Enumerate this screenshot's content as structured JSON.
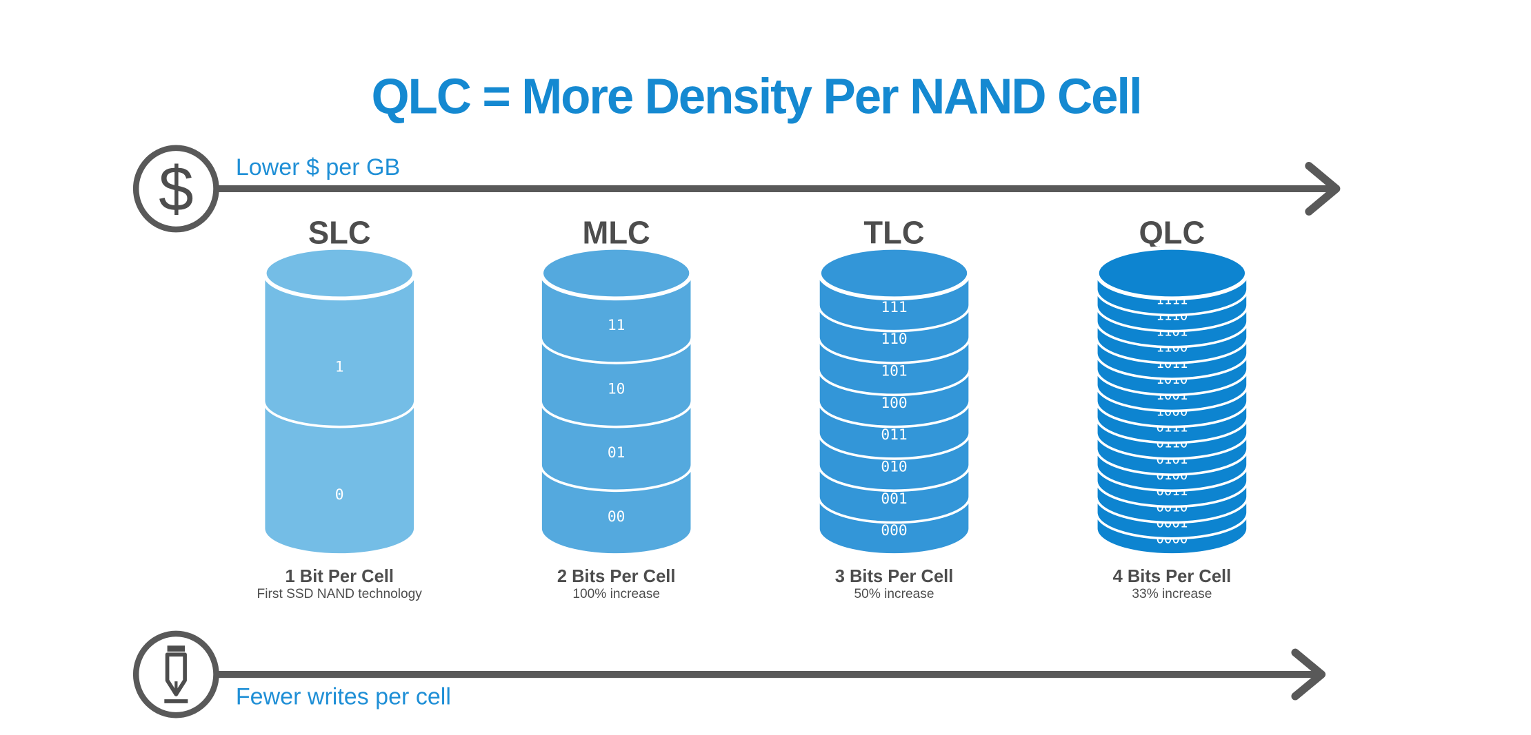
{
  "title": "QLC = More Density Per NAND Cell",
  "top_arrow": {
    "label": "Lower $ per GB",
    "icon": "dollar-icon"
  },
  "bottom_arrow": {
    "label": "Fewer writes per cell",
    "icon": "pencil-icon"
  },
  "colors": {
    "title": "#1589d1",
    "arrow": "#595959",
    "arrow_label": "#1f8fd6",
    "slc": "#74bde6",
    "mlc": "#54a9de",
    "tlc": "#3396d8",
    "qlc": "#0d84d0"
  },
  "cells": [
    {
      "name": "SLC",
      "bits_label": "1 Bit Per Cell",
      "sub_label": "First SSD NAND technology",
      "codes": [
        "1",
        "0"
      ]
    },
    {
      "name": "MLC",
      "bits_label": "2 Bits Per Cell",
      "sub_label": "100% increase",
      "codes": [
        "11",
        "10",
        "01",
        "00"
      ]
    },
    {
      "name": "TLC",
      "bits_label": "3 Bits Per Cell",
      "sub_label": "50% increase",
      "codes": [
        "111",
        "110",
        "101",
        "100",
        "011",
        "010",
        "001",
        "000"
      ]
    },
    {
      "name": "QLC",
      "bits_label": "4 Bits Per Cell",
      "sub_label": "33% increase",
      "codes": [
        "1111",
        "1110",
        "1101",
        "1100",
        "1011",
        "1010",
        "1001",
        "1000",
        "0111",
        "0110",
        "0101",
        "0100",
        "0011",
        "0010",
        "0001",
        "0000"
      ]
    }
  ]
}
